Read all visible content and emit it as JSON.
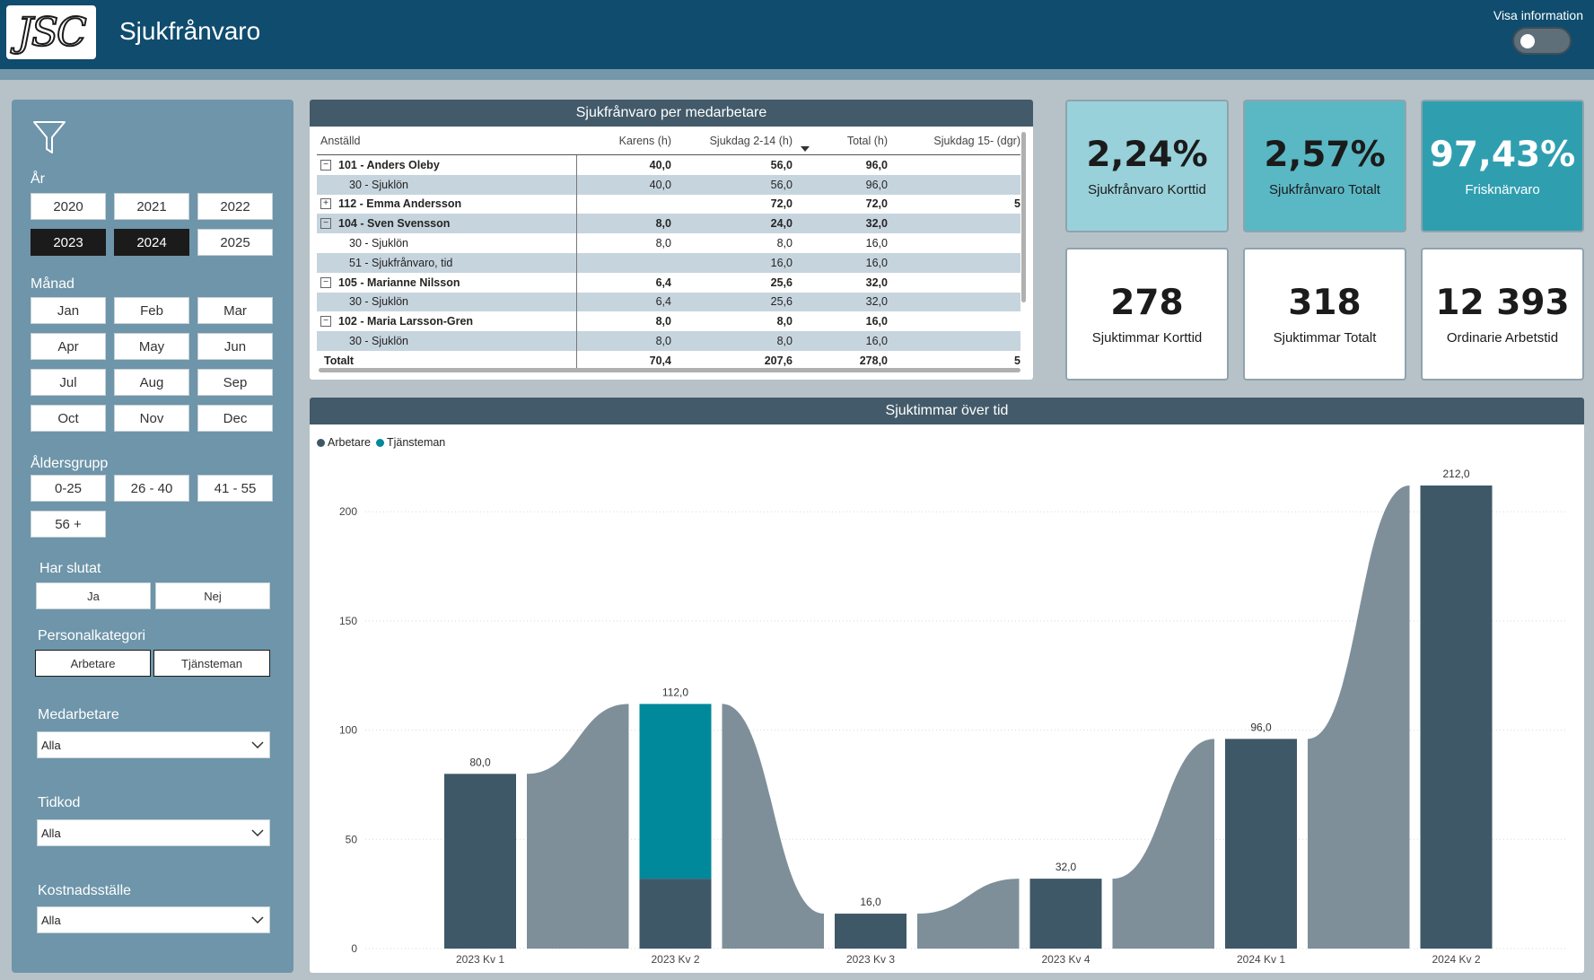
{
  "header": {
    "logo_text": "JSC",
    "title": "Sjukfrånvaro",
    "info_toggle_label": "Visa information",
    "info_toggle_on": false
  },
  "filters": {
    "filter_icon": "filter-funnel-icon",
    "year": {
      "label": "År",
      "options": [
        "2020",
        "2021",
        "2022",
        "2023",
        "2024",
        "2025"
      ],
      "selected": [
        "2023",
        "2024"
      ]
    },
    "month": {
      "label": "Månad",
      "options": [
        "Jan",
        "Feb",
        "Mar",
        "Apr",
        "May",
        "Jun",
        "Jul",
        "Aug",
        "Sep",
        "Oct",
        "Nov",
        "Dec"
      ]
    },
    "age_group": {
      "label": "Åldersgrupp",
      "options": [
        "0-25",
        "26 - 40",
        "41 - 55",
        "56 +"
      ]
    },
    "has_quit": {
      "label": "Har slutat",
      "options": [
        "Ja",
        "Nej"
      ]
    },
    "personnel_category": {
      "label": "Personalkategori",
      "options": [
        "Arbetare",
        "Tjänsteman"
      ]
    },
    "employee": {
      "label": "Medarbetare",
      "value": "Alla"
    },
    "time_code": {
      "label": "Tidkod",
      "value": "Alla"
    },
    "cost_center": {
      "label": "Kostnadsställe",
      "value": "Alla"
    }
  },
  "table": {
    "title": "Sjukfrånvaro per medarbetare",
    "columns": [
      "Anställd",
      "Karens (h)",
      "Sjukdag 2-14 (h)",
      "Total (h)",
      "Sjukdag 15- (dgr)"
    ],
    "rows": [
      {
        "type": "group",
        "expanded": true,
        "cells": [
          "101 - Anders Oleby",
          "40,0",
          "56,0",
          "96,0",
          ""
        ]
      },
      {
        "type": "sub",
        "cells": [
          "30 - Sjuklön",
          "40,0",
          "56,0",
          "96,0",
          ""
        ]
      },
      {
        "type": "group",
        "expanded": false,
        "cells": [
          "112 - Emma Andersson",
          "",
          "72,0",
          "72,0",
          "5"
        ]
      },
      {
        "type": "group",
        "expanded": true,
        "cells": [
          "104 - Sven Svensson",
          "8,0",
          "24,0",
          "32,0",
          ""
        ]
      },
      {
        "type": "sub",
        "cells": [
          "30 - Sjuklön",
          "8,0",
          "8,0",
          "16,0",
          ""
        ]
      },
      {
        "type": "sub",
        "cells": [
          "51 - Sjukfrånvaro, tid",
          "",
          "16,0",
          "16,0",
          ""
        ]
      },
      {
        "type": "group",
        "expanded": true,
        "cells": [
          "105 - Marianne Nilsson",
          "6,4",
          "25,6",
          "32,0",
          ""
        ]
      },
      {
        "type": "sub",
        "cells": [
          "30 - Sjuklön",
          "6,4",
          "25,6",
          "32,0",
          ""
        ]
      },
      {
        "type": "group",
        "expanded": true,
        "cells": [
          "102 - Maria Larsson-Gren",
          "8,0",
          "8,0",
          "16,0",
          ""
        ]
      },
      {
        "type": "sub",
        "cells": [
          "30 - Sjuklön",
          "8,0",
          "8,0",
          "16,0",
          ""
        ]
      }
    ],
    "total": [
      "Totalt",
      "70,4",
      "207,6",
      "278,0",
      "5"
    ]
  },
  "kpis": [
    {
      "value": "2,24%",
      "label": "Sjukfrånvaro Korttid",
      "bg": "#99d1da",
      "fg": "#1b1b1b"
    },
    {
      "value": "2,57%",
      "label": "Sjukfrånvaro Totalt",
      "bg": "#5ab8c5",
      "fg": "#1b1b1b"
    },
    {
      "value": "97,43%",
      "label": "Frisknärvaro",
      "bg": "#2f9fb0",
      "fg": "#ffffff"
    },
    {
      "value": "278",
      "label": "Sjuktimmar Korttid",
      "bg": "#ffffff",
      "fg": "#1b1b1b"
    },
    {
      "value": "318",
      "label": "Sjuktimmar Totalt",
      "bg": "#ffffff",
      "fg": "#1b1b1b"
    },
    {
      "value": "12 393",
      "label": "Ordinarie Arbetstid",
      "bg": "#ffffff",
      "fg": "#1b1b1b"
    }
  ],
  "chart_data": {
    "type": "bar",
    "title": "Sjuktimmar över tid",
    "categories": [
      "2023 Kv 1",
      "2023 Kv 2",
      "2023 Kv 3",
      "2023 Kv 4",
      "2024 Kv 1",
      "2024 Kv 2"
    ],
    "series": [
      {
        "name": "Arbetare",
        "color": "#3f5867",
        "values": [
          80,
          32,
          16,
          32,
          96,
          212
        ]
      },
      {
        "name": "Tjänsteman",
        "color": "#00889b",
        "values": [
          0,
          80,
          0,
          0,
          0,
          0
        ]
      }
    ],
    "totals": [
      80,
      112,
      16,
      32,
      96,
      212
    ],
    "data_labels": [
      "80,0",
      "112,0",
      "16,0",
      "32,0",
      "96,0",
      "212,0"
    ],
    "y_ticks": [
      0,
      50,
      100,
      150,
      200
    ],
    "ylim": [
      0,
      212
    ],
    "stacked": true,
    "ribbon_color": "#7e8f99",
    "legend_position": "top-left",
    "grid": true
  }
}
